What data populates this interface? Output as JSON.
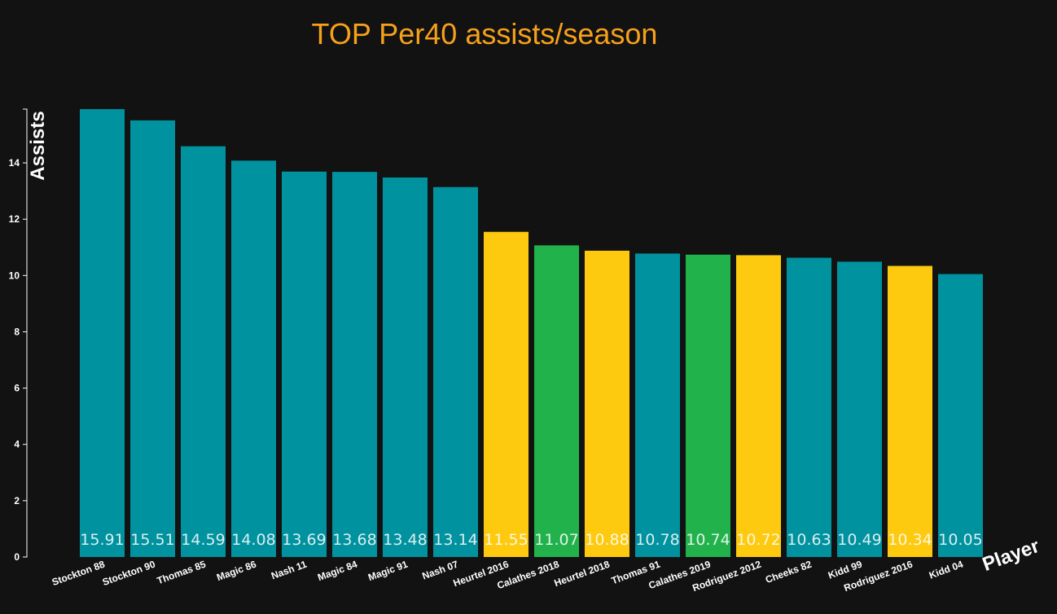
{
  "chart_data": {
    "type": "bar",
    "title": "TOP Per40 assists/season",
    "xlabel": "Player",
    "ylabel": "Assists",
    "ylim": [
      0,
      15.91
    ],
    "yticks": [
      0,
      2,
      4,
      6,
      8,
      10,
      12,
      14
    ],
    "grid": false,
    "categories": [
      "Stockton 88",
      "Stockton 90",
      "Thomas 85",
      "Magic 86",
      "Nash 11",
      "Magic 84",
      "Magic 91",
      "Nash 07",
      "Heurtel 2016",
      "Calathes 2018",
      "Heurtel 2018",
      "Thomas 91",
      "Calathes 2019",
      "Rodriguez 2012",
      "Cheeks 82",
      "Kidd 99",
      "Rodriguez 2016",
      "Kidd 04"
    ],
    "values": [
      15.91,
      15.51,
      14.59,
      14.08,
      13.69,
      13.68,
      13.48,
      13.14,
      11.55,
      11.07,
      10.88,
      10.78,
      10.74,
      10.72,
      10.63,
      10.49,
      10.34,
      10.05
    ],
    "value_labels": [
      "15.91",
      "15.51",
      "14.59",
      "14.08",
      "13.69",
      "13.68",
      "13.48",
      "13.14",
      "11.55",
      "11.07",
      "10.88",
      "10.78",
      "10.74",
      "10.72",
      "10.63",
      "10.49",
      "10.34",
      "10.05"
    ],
    "bar_colors": [
      "#00929f",
      "#00929f",
      "#00929f",
      "#00929f",
      "#00929f",
      "#00929f",
      "#00929f",
      "#00929f",
      "#fdca10",
      "#22b24b",
      "#fdca10",
      "#00929f",
      "#22b24b",
      "#fdca10",
      "#00929f",
      "#00929f",
      "#fdca10",
      "#00929f"
    ],
    "colors": {
      "background": "#121212",
      "title": "#f7a11b",
      "axis": "#ffffff"
    }
  }
}
